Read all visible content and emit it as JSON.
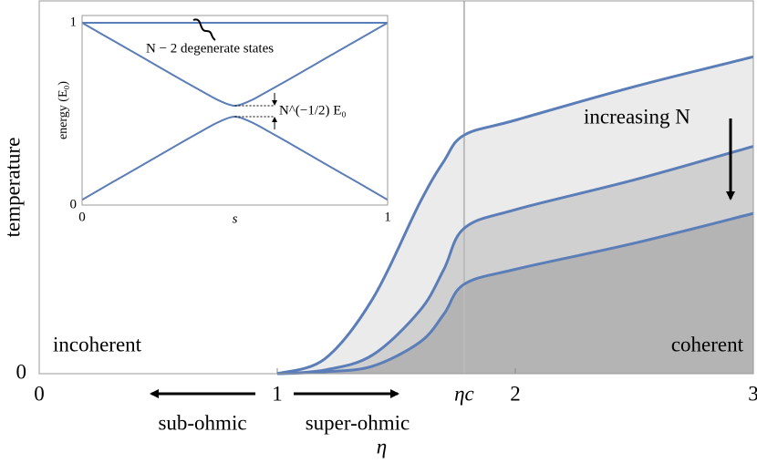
{
  "chart_data": [
    {
      "type": "line",
      "xlabel": "η",
      "ylabel": "temperature",
      "xlim": [
        0,
        3
      ],
      "ylim": [
        0,
        1
      ],
      "xticks": [
        0,
        1,
        {
          "value": 1.785,
          "label": "ηc"
        },
        2,
        3
      ],
      "yticks": [
        0
      ],
      "x": [
        1,
        1.2,
        1.4,
        1.6,
        1.7,
        1.785,
        2,
        2.5,
        3
      ],
      "series": [
        {
          "color": "#5b7db8",
          "fill": "#ebebeb",
          "values": [
            0,
            0.04,
            0.2,
            0.46,
            0.57,
            0.64,
            0.68,
            0.77,
            0.85
          ]
        },
        {
          "color": "#5b7db8",
          "fill": "#d0d0d0",
          "values": [
            0,
            0.01,
            0.05,
            0.17,
            0.28,
            0.39,
            0.44,
            0.52,
            0.61
          ]
        },
        {
          "color": "#5b7db8",
          "fill": "#b4b4b4",
          "values": [
            0,
            0.005,
            0.02,
            0.085,
            0.16,
            0.24,
            0.28,
            0.35,
            0.43
          ]
        }
      ],
      "annotations": [
        "incoherent",
        "coherent",
        "increasing N",
        "sub-ohmic",
        "super-ohmic"
      ]
    },
    {
      "type": "line",
      "xlabel": "s",
      "ylabel": "energy (E₀)",
      "xlim": [
        0,
        1
      ],
      "ylim": [
        0,
        1.04
      ],
      "xticks": [
        0,
        1
      ],
      "yticks": [
        0,
        1
      ],
      "x": [
        0,
        0.1,
        0.2,
        0.3,
        0.4,
        0.45,
        0.5,
        0.55,
        0.6,
        0.7,
        0.8,
        0.9,
        1
      ],
      "series": [
        {
          "color": "#5b7db8",
          "values": [
            1,
            1,
            1,
            1,
            1,
            1,
            1,
            1,
            1,
            1,
            1,
            1,
            1
          ]
        },
        {
          "color": "#5b7db8",
          "values": [
            1.0,
            0.904,
            0.808,
            0.711,
            0.617,
            0.572,
            0.545,
            0.572,
            0.617,
            0.711,
            0.808,
            0.904,
            1.0
          ]
        },
        {
          "color": "#5b7db8",
          "values": [
            0.029,
            0.126,
            0.222,
            0.319,
            0.414,
            0.458,
            0.485,
            0.458,
            0.414,
            0.319,
            0.222,
            0.126,
            0.029
          ]
        }
      ],
      "annotations": [
        "N − 2 degenerate states",
        "N^(−1/2) E₀"
      ]
    }
  ]
}
